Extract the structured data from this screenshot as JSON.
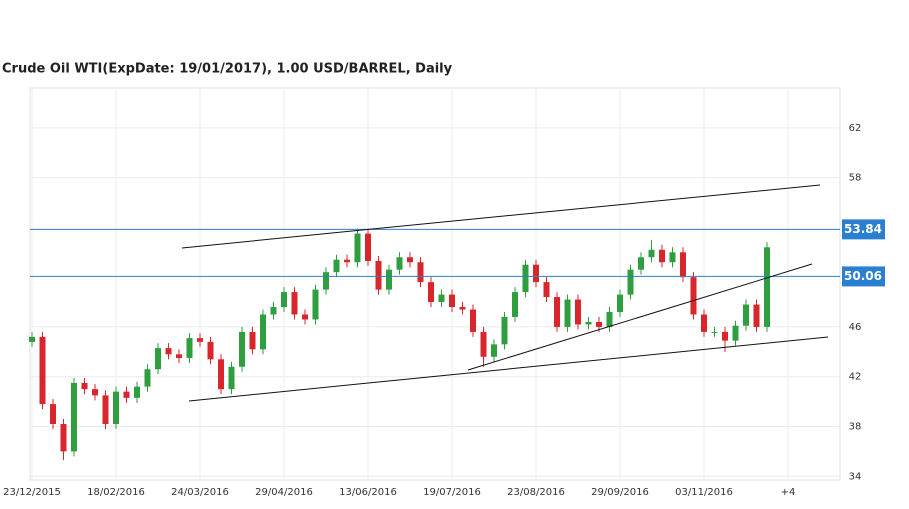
{
  "chart_data": {
    "type": "candlestick",
    "title": "Crude Oil WTI(ExpDate: 19/01/2017), 1.00 USD/BARREL, Daily",
    "categories": [
      "23/12/2015",
      null,
      null,
      null,
      null,
      null,
      null,
      null,
      "18/02/2016",
      null,
      null,
      null,
      null,
      null,
      null,
      null,
      "24/03/2016",
      null,
      null,
      null,
      null,
      null,
      null,
      null,
      "29/04/2016",
      null,
      null,
      null,
      null,
      null,
      null,
      null,
      "13/06/2016",
      null,
      null,
      null,
      null,
      null,
      null,
      null,
      "19/07/2016",
      null,
      null,
      null,
      null,
      null,
      null,
      null,
      "23/08/2016",
      null,
      null,
      null,
      null,
      null,
      null,
      null,
      "29/09/2016",
      null,
      null,
      null,
      null,
      null,
      null,
      null,
      "03/11/2016",
      null,
      null,
      null,
      null,
      null,
      null,
      null,
      "+4"
    ],
    "open": [
      44.8,
      45.2,
      39.8,
      38.2,
      36.0,
      41.5,
      41.0,
      40.5,
      38.2,
      40.8,
      40.3,
      41.2,
      42.6,
      44.3,
      43.8,
      43.5,
      45.1,
      44.8,
      43.4,
      41.0,
      42.8,
      45.6,
      44.2,
      47.0,
      47.6,
      48.8,
      47.0,
      46.6,
      49.0,
      50.4,
      51.4,
      51.2,
      53.5,
      51.3,
      49.0,
      50.6,
      51.6,
      51.2,
      49.6,
      48.0,
      48.6,
      47.6,
      47.4,
      45.6,
      43.6,
      44.6,
      46.8,
      48.8,
      51.0,
      49.6,
      48.4,
      46.0,
      48.2,
      46.2,
      46.4,
      46.0,
      47.2,
      48.6,
      50.6,
      51.6,
      52.2,
      51.2,
      52.0,
      50.0,
      47.0,
      45.6,
      45.6,
      44.9,
      46.1,
      47.8,
      46.0,
      null,
      null
    ],
    "high": [
      45.6,
      45.6,
      40.2,
      38.6,
      41.9,
      41.9,
      41.4,
      40.9,
      41.2,
      41.2,
      41.6,
      43.0,
      44.7,
      44.7,
      44.2,
      45.5,
      45.5,
      45.2,
      43.8,
      43.2,
      46.0,
      46.0,
      47.4,
      48.0,
      49.2,
      49.2,
      47.4,
      49.4,
      50.8,
      51.8,
      51.8,
      53.9,
      53.9,
      51.7,
      51.0,
      52.0,
      52.0,
      51.6,
      50.0,
      49.0,
      49.0,
      48.0,
      47.8,
      46.0,
      45.0,
      47.2,
      49.2,
      51.4,
      51.4,
      50.0,
      48.8,
      48.6,
      48.6,
      46.8,
      46.8,
      47.6,
      49.0,
      51.0,
      52.0,
      53.0,
      52.6,
      52.4,
      52.4,
      50.4,
      47.4,
      46.0,
      46.0,
      46.5,
      48.2,
      48.2,
      52.8,
      null,
      null
    ],
    "low": [
      44.4,
      39.4,
      37.8,
      35.3,
      35.6,
      40.6,
      40.1,
      37.8,
      37.8,
      39.9,
      39.9,
      40.8,
      42.2,
      43.4,
      43.1,
      43.1,
      44.4,
      43.0,
      40.6,
      40.6,
      42.4,
      43.8,
      43.8,
      46.6,
      47.2,
      46.6,
      46.2,
      46.2,
      48.6,
      50.0,
      50.8,
      50.8,
      50.9,
      48.6,
      48.6,
      50.2,
      50.8,
      49.2,
      47.6,
      47.6,
      47.2,
      47.0,
      45.2,
      42.8,
      43.2,
      44.2,
      46.4,
      48.4,
      49.2,
      48.0,
      45.6,
      45.6,
      45.8,
      45.8,
      45.6,
      45.6,
      46.8,
      48.2,
      50.2,
      51.2,
      50.8,
      50.8,
      49.6,
      46.6,
      45.2,
      45.2,
      44.0,
      44.5,
      45.7,
      45.6,
      45.6,
      null,
      null
    ],
    "close": [
      45.2,
      39.8,
      38.2,
      36.0,
      41.5,
      41.0,
      40.5,
      38.2,
      40.8,
      40.3,
      41.2,
      42.6,
      44.3,
      43.8,
      43.5,
      45.1,
      44.8,
      43.4,
      41.0,
      42.8,
      45.6,
      44.2,
      47.0,
      47.6,
      48.8,
      47.0,
      46.6,
      49.0,
      50.4,
      51.4,
      51.2,
      53.5,
      51.3,
      49.0,
      50.6,
      51.6,
      51.2,
      49.6,
      48.0,
      48.6,
      47.6,
      47.4,
      45.6,
      43.6,
      44.6,
      46.8,
      48.8,
      51.0,
      49.6,
      48.4,
      46.0,
      48.2,
      46.2,
      46.4,
      46.0,
      47.2,
      48.6,
      50.6,
      51.6,
      52.2,
      51.2,
      52.0,
      50.0,
      47.0,
      45.6,
      45.6,
      44.9,
      46.1,
      47.8,
      46.0,
      52.4,
      null,
      null
    ],
    "up_color": "#2f9e3f",
    "down_color": "#d9262c",
    "levels": [
      53.84,
      50.06
    ],
    "level_color": "#2b7fd0",
    "ylim": [
      33.7,
      65.2
    ],
    "yticks": [
      34,
      38,
      42,
      46,
      58,
      62
    ],
    "grid": true
  }
}
